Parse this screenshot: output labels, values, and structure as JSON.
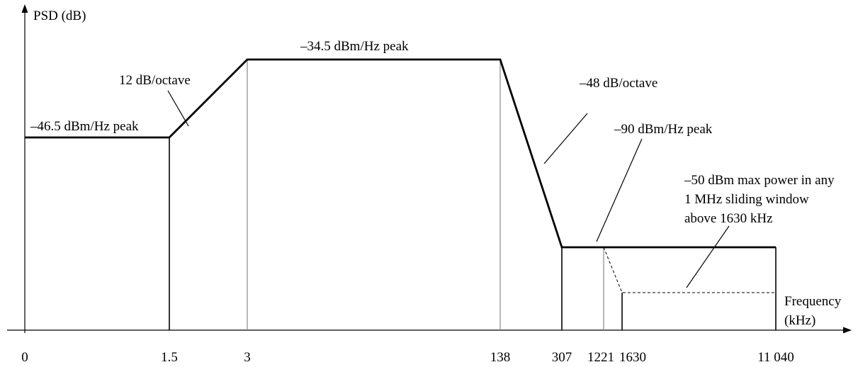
{
  "axes": {
    "y_label": "PSD (dB)",
    "x_label_line1": "Frequency",
    "x_label_line2": "(kHz)"
  },
  "ticks": [
    "0",
    "1.5",
    "3",
    "138",
    "307",
    "1221",
    "1630",
    "11 040"
  ],
  "annotations": {
    "low_band_peak": "–46.5 dBm/Hz peak",
    "rise_slope": "12 dB/octave",
    "passband_peak": "–34.5 dBm/Hz peak",
    "fall_slope": "–48 dB/octave",
    "stopband_peak": "–90 dBm/Hz peak",
    "sliding_line1": "–50 dBm max power in any",
    "sliding_line2": "1 MHz sliding window",
    "sliding_line3": "above 1630 kHz"
  }
}
